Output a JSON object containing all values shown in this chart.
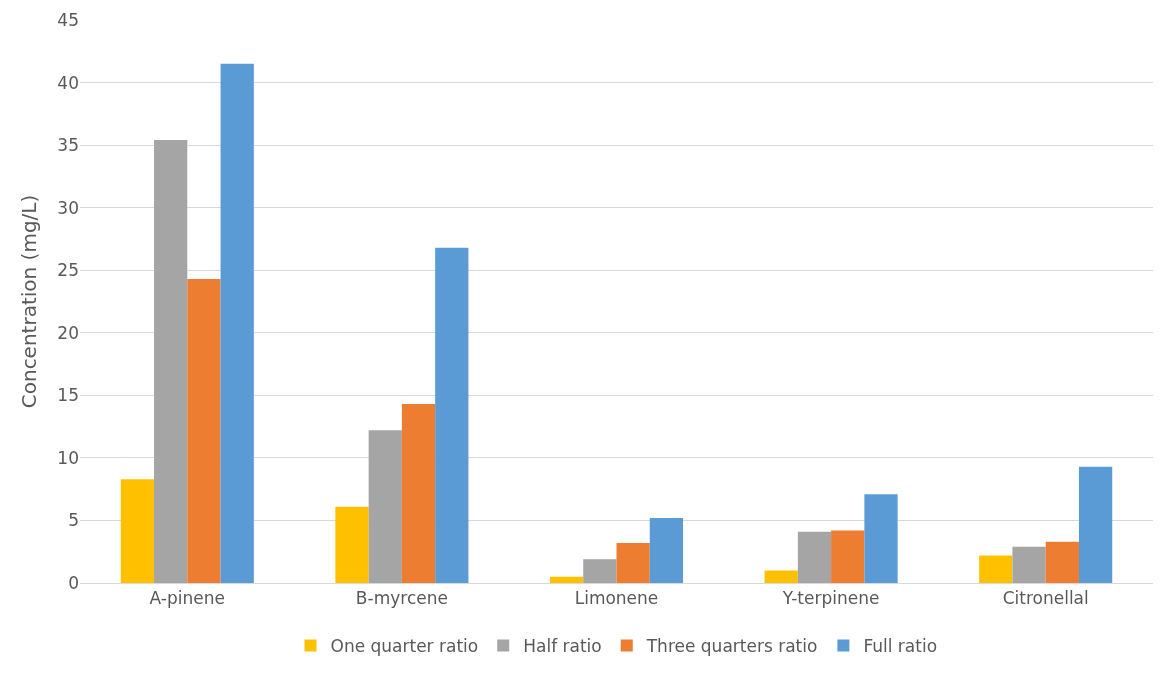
{
  "chart_data": {
    "type": "bar",
    "ylabel": "Concentration (mg/L)",
    "categories": [
      "A-pinene",
      "B-myrcene",
      "Limonene",
      "Y-terpinene",
      "Citronellal"
    ],
    "series": [
      {
        "name": "One quarter ratio",
        "color": "#ffc000",
        "values": [
          8.3,
          6.1,
          0.5,
          1.0,
          2.2
        ]
      },
      {
        "name": "Half ratio",
        "color": "#a5a5a5",
        "values": [
          35.4,
          12.2,
          1.9,
          4.1,
          2.9
        ]
      },
      {
        "name": "Three quarters ratio",
        "color": "#ed7d31",
        "values": [
          24.3,
          14.3,
          3.2,
          4.2,
          3.3
        ]
      },
      {
        "name": "Full ratio",
        "color": "#5b9bd5",
        "values": [
          41.5,
          26.8,
          5.2,
          7.1,
          9.3
        ]
      }
    ],
    "ylim": [
      0,
      45
    ],
    "yticks": [
      0,
      5,
      10,
      15,
      20,
      25,
      30,
      35,
      40,
      45
    ],
    "grid": "y",
    "legend": "bottom"
  }
}
